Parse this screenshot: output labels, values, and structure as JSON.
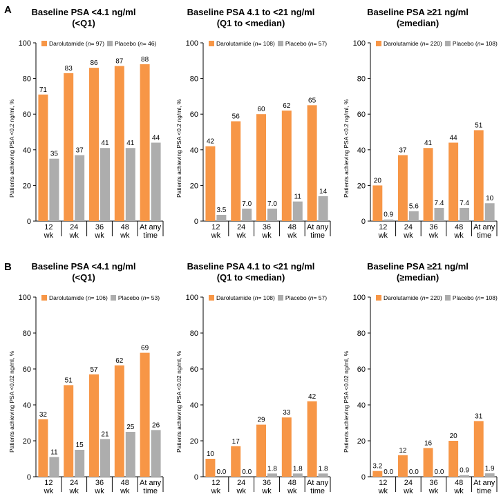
{
  "figure": {
    "panel_a_label": "A",
    "panel_b_label": "B",
    "colors": {
      "darolutamide": "#F79646",
      "placebo": "#ADADAD",
      "axis": "#000000"
    }
  },
  "chart_data": [
    {
      "type": "bar",
      "panel": "A",
      "title_line1": "Baseline PSA <4.1 ng/ml",
      "title_line2": "(<Q1)",
      "ylabel": "Patients achieving PSA <0.2 ng/ml, %",
      "ylim": [
        0,
        100
      ],
      "yticks": [
        0,
        20,
        40,
        60,
        80,
        100
      ],
      "categories": [
        [
          "12",
          "wk"
        ],
        [
          "24",
          "wk"
        ],
        [
          "36",
          "wk"
        ],
        [
          "48",
          "wk"
        ],
        [
          "At any",
          "time"
        ]
      ],
      "legend": {
        "darolutamide": "Darolutamide (",
        "daro_n": "n",
        "daro_val": " = 97)",
        "placebo": "Placebo (",
        "plac_n": "n",
        "plac_val": " = 46)"
      },
      "series": [
        {
          "name": "Darolutamide",
          "values": [
            71,
            83,
            86,
            87,
            88
          ],
          "labels": [
            "71",
            "83",
            "86",
            "87",
            "88"
          ]
        },
        {
          "name": "Placebo",
          "values": [
            35,
            37,
            41,
            41,
            44
          ],
          "labels": [
            "35",
            "37",
            "41",
            "41",
            "44"
          ]
        }
      ]
    },
    {
      "type": "bar",
      "panel": "A",
      "title_line1": "Baseline PSA 4.1 to <21 ng/ml",
      "title_line2": "(Q1 to <median)",
      "ylabel": "Patients achieving PSA <0.2 ng/ml, %",
      "ylim": [
        0,
        100
      ],
      "yticks": [
        0,
        20,
        40,
        60,
        80,
        100
      ],
      "categories": [
        [
          "12",
          "wk"
        ],
        [
          "24",
          "wk"
        ],
        [
          "36",
          "wk"
        ],
        [
          "48",
          "wk"
        ],
        [
          "At any",
          "time"
        ]
      ],
      "legend": {
        "darolutamide": "Darolutamide (",
        "daro_n": "n",
        "daro_val": " = 108)",
        "placebo": "Placebo (",
        "plac_n": "n",
        "plac_val": " = 57)"
      },
      "series": [
        {
          "name": "Darolutamide",
          "values": [
            42,
            56,
            60,
            62,
            65
          ],
          "labels": [
            "42",
            "56",
            "60",
            "62",
            "65"
          ]
        },
        {
          "name": "Placebo",
          "values": [
            3.5,
            7.0,
            7.0,
            11,
            14
          ],
          "labels": [
            "3.5",
            "7.0",
            "7.0",
            "11",
            "14"
          ]
        }
      ]
    },
    {
      "type": "bar",
      "panel": "A",
      "title_line1": "Baseline PSA ≥21 ng/ml",
      "title_line2": "(≥median)",
      "ylabel": "Patients achieving PSA <0.2 ng/ml, %",
      "ylim": [
        0,
        100
      ],
      "yticks": [
        0,
        20,
        40,
        60,
        80,
        100
      ],
      "categories": [
        [
          "12",
          "wk"
        ],
        [
          "24",
          "wk"
        ],
        [
          "36",
          "wk"
        ],
        [
          "48",
          "wk"
        ],
        [
          "At any",
          "time"
        ]
      ],
      "legend": {
        "darolutamide": "Darolutamide (",
        "daro_n": "n",
        "daro_val": " = 220)",
        "placebo": "Placebo (",
        "plac_n": "n",
        "plac_val": " = 108)"
      },
      "series": [
        {
          "name": "Darolutamide",
          "values": [
            20,
            37,
            41,
            44,
            51
          ],
          "labels": [
            "20",
            "37",
            "41",
            "44",
            "51"
          ]
        },
        {
          "name": "Placebo",
          "values": [
            0.9,
            5.6,
            7.4,
            7.4,
            10
          ],
          "labels": [
            "0.9",
            "5.6",
            "7.4",
            "7.4",
            "10"
          ]
        }
      ]
    },
    {
      "type": "bar",
      "panel": "B",
      "title_line1": "Baseline PSA <4.1 ng/ml",
      "title_line2": "(<Q1)",
      "ylabel": "Patients achieving PSA <0.02 ng/ml, %",
      "ylim": [
        0,
        100
      ],
      "yticks": [
        0,
        20,
        40,
        60,
        80,
        100
      ],
      "categories": [
        [
          "12",
          "wk"
        ],
        [
          "24",
          "wk"
        ],
        [
          "36",
          "wk"
        ],
        [
          "48",
          "wk"
        ],
        [
          "At any",
          "time"
        ]
      ],
      "legend": {
        "darolutamide": "Darolutamide (",
        "daro_n": "n",
        "daro_val": " = 106)",
        "placebo": "Placebo (",
        "plac_n": "n",
        "plac_val": " = 53)"
      },
      "series": [
        {
          "name": "Darolutamide",
          "values": [
            32,
            51,
            57,
            62,
            69
          ],
          "labels": [
            "32",
            "51",
            "57",
            "62",
            "69"
          ]
        },
        {
          "name": "Placebo",
          "values": [
            11,
            15,
            21,
            25,
            26
          ],
          "labels": [
            "11",
            "15",
            "21",
            "25",
            "26"
          ]
        }
      ]
    },
    {
      "type": "bar",
      "panel": "B",
      "title_line1": "Baseline PSA 4.1 to <21 ng/ml",
      "title_line2": "(Q1 to <median)",
      "ylabel": "Patients achieving PSA <0.02 ng/ml, %",
      "ylim": [
        0,
        100
      ],
      "yticks": [
        0,
        20,
        40,
        60,
        80,
        100
      ],
      "categories": [
        [
          "12",
          "wk"
        ],
        [
          "24",
          "wk"
        ],
        [
          "36",
          "wk"
        ],
        [
          "48",
          "wk"
        ],
        [
          "At any",
          "time"
        ]
      ],
      "legend": {
        "darolutamide": "Darolutamide (",
        "daro_n": "n",
        "daro_val": " = 108)",
        "placebo": "Placebo (",
        "plac_n": "n",
        "plac_val": " = 57)"
      },
      "series": [
        {
          "name": "Darolutamide",
          "values": [
            10,
            17,
            29,
            33,
            42
          ],
          "labels": [
            "10",
            "17",
            "29",
            "33",
            "42"
          ]
        },
        {
          "name": "Placebo",
          "values": [
            0.0,
            0.0,
            1.8,
            1.8,
            1.8
          ],
          "labels": [
            "0.0",
            "0.0",
            "1.8",
            "1.8",
            "1.8"
          ]
        }
      ]
    },
    {
      "type": "bar",
      "panel": "B",
      "title_line1": "Baseline PSA ≥21 ng/ml",
      "title_line2": "(≥median)",
      "ylabel": "Patients achieving PSA <0.02 ng/ml, %",
      "ylim": [
        0,
        100
      ],
      "yticks": [
        0,
        20,
        40,
        60,
        80,
        100
      ],
      "categories": [
        [
          "12",
          "wk"
        ],
        [
          "24",
          "wk"
        ],
        [
          "36",
          "wk"
        ],
        [
          "48",
          "wk"
        ],
        [
          "At any",
          "time"
        ]
      ],
      "legend": {
        "darolutamide": "Darolutamide (",
        "daro_n": "n",
        "daro_val": " = 220)",
        "placebo": "Placebo (",
        "plac_n": "n",
        "plac_val": " = 108)"
      },
      "series": [
        {
          "name": "Darolutamide",
          "values": [
            3.2,
            12,
            16,
            20,
            31
          ],
          "labels": [
            "3.2",
            "12",
            "16",
            "20",
            "31"
          ]
        },
        {
          "name": "Placebo",
          "values": [
            0.0,
            0.0,
            0.0,
            0.9,
            1.9
          ],
          "labels": [
            "0.0",
            "0.0",
            "0.0",
            "0.9",
            "1.9"
          ]
        }
      ]
    }
  ]
}
